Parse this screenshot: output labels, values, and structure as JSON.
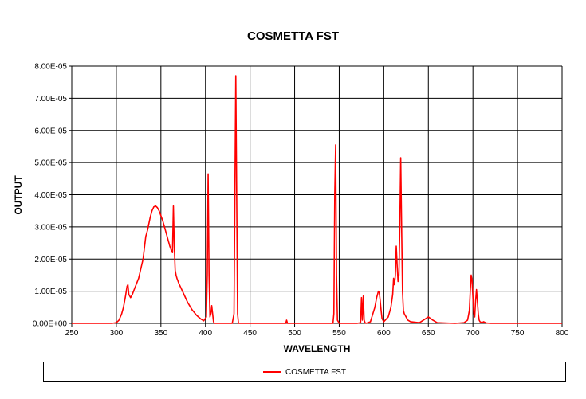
{
  "chart_data": {
    "type": "line",
    "title": "COSMETTA FST",
    "xlabel": "WAVELENGTH",
    "ylabel": "OUTPUT",
    "xlim": [
      250,
      800
    ],
    "ylim": [
      0,
      8e-05
    ],
    "x_ticks": [
      "250",
      "300",
      "350",
      "400",
      "450",
      "500",
      "550",
      "600",
      "650",
      "700",
      "750",
      "800"
    ],
    "y_ticks": [
      "0.00E+00",
      "1.00E-05",
      "2.00E-05",
      "3.00E-05",
      "4.00E-05",
      "5.00E-05",
      "6.00E-05",
      "7.00E-05",
      "8.00E-05"
    ],
    "grid": true,
    "legend_position": "bottom",
    "color": "#ff0000",
    "series": [
      {
        "name": "COSMETTA FST",
        "x": [
          250,
          295,
          300,
          303,
          306,
          308,
          310,
          312,
          313,
          314,
          316,
          318,
          320,
          325,
          330,
          333,
          335,
          338,
          340,
          342,
          344,
          346,
          348,
          350,
          352,
          355,
          358,
          360,
          362,
          363,
          364,
          365,
          366,
          367,
          368,
          370,
          375,
          380,
          385,
          390,
          395,
          398,
          401,
          402,
          403,
          404,
          405,
          406,
          407,
          408,
          409,
          410,
          415,
          420,
          430,
          432,
          433,
          434,
          435,
          436,
          437,
          438,
          440,
          450,
          480,
          490,
          491,
          492,
          500,
          540,
          543,
          544,
          545,
          546,
          547,
          548,
          550,
          560,
          570,
          574,
          575,
          576,
          577,
          578,
          579,
          580,
          585,
          590,
          592,
          594,
          595,
          596,
          597,
          598,
          600,
          605,
          608,
          610,
          611,
          612,
          613,
          614,
          615,
          616,
          617,
          618,
          619,
          620,
          621,
          622,
          623,
          624,
          625,
          627,
          630,
          640,
          650,
          655,
          660,
          680,
          690,
          694,
          696,
          697,
          698,
          699,
          700,
          701,
          702,
          703,
          704,
          705,
          706,
          707,
          708,
          710,
          712,
          715,
          720,
          750,
          800
        ],
        "y": [
          0,
          0,
          2e-07,
          1e-06,
          3e-06,
          5e-06,
          8e-06,
          1.15e-05,
          1.2e-05,
          9e-06,
          8e-06,
          9e-06,
          1.05e-05,
          1.4e-05,
          2e-05,
          2.7e-05,
          2.9e-05,
          3.3e-05,
          3.5e-05,
          3.62e-05,
          3.65e-05,
          3.6e-05,
          3.5e-05,
          3.35e-05,
          3.2e-05,
          2.9e-05,
          2.6e-05,
          2.4e-05,
          2.25e-05,
          2.2e-05,
          3.65e-05,
          2.4e-05,
          1.65e-05,
          1.5e-05,
          1.4e-05,
          1.25e-05,
          9.5e-06,
          6.5e-06,
          4.2e-06,
          2.5e-06,
          1.3e-06,
          8e-07,
          2e-06,
          1.5e-05,
          4.65e-05,
          1.5e-05,
          2e-06,
          3e-06,
          5.5e-06,
          3e-06,
          5e-07,
          0,
          0,
          0,
          0,
          3e-06,
          4e-05,
          7.7e-05,
          4e-05,
          3e-06,
          0,
          0,
          0,
          0,
          0,
          0,
          1e-06,
          0,
          0,
          0,
          0,
          3e-06,
          4e-05,
          5.55e-05,
          1.5e-05,
          1e-06,
          0,
          0,
          0,
          2e-07,
          8e-06,
          1e-06,
          8.5e-06,
          1e-06,
          2e-07,
          0,
          5e-07,
          5e-06,
          8e-06,
          1e-05,
          9.5e-06,
          7e-06,
          4e-06,
          1.5e-06,
          5e-07,
          2e-06,
          5e-06,
          9e-06,
          1.4e-05,
          1.2e-05,
          1.5e-05,
          2.4e-05,
          1.8e-05,
          1.3e-05,
          1.5e-05,
          3e-05,
          5.15e-05,
          3e-05,
          1e-05,
          4e-06,
          3e-06,
          2.5e-06,
          2e-06,
          1e-06,
          5e-07,
          2e-07,
          2e-06,
          1e-06,
          2e-07,
          0,
          2e-07,
          1e-06,
          4e-06,
          1e-05,
          1.5e-05,
          1.35e-05,
          8e-06,
          3e-06,
          2e-06,
          7e-06,
          1.05e-05,
          7e-06,
          3e-06,
          1e-06,
          5e-07,
          2e-07,
          5e-07,
          1e-07,
          0,
          0,
          0
        ]
      }
    ]
  }
}
